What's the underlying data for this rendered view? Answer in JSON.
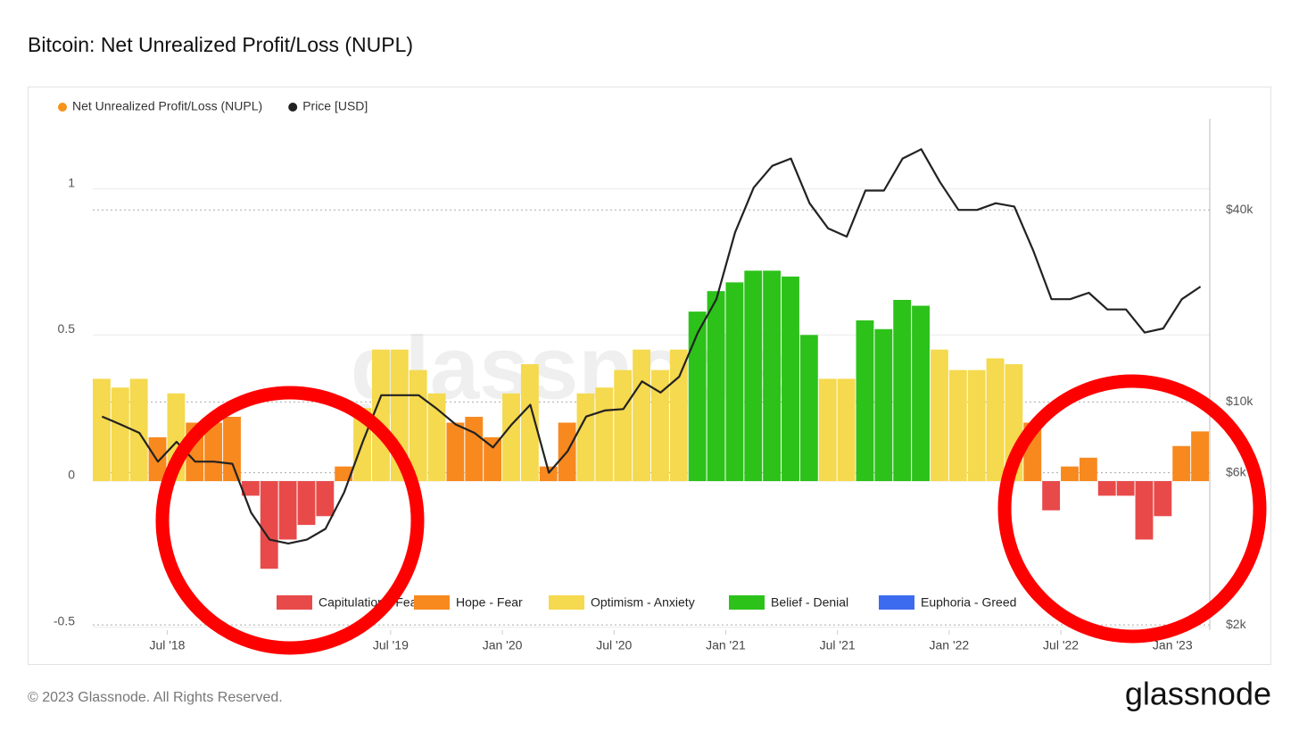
{
  "title": "Bitcoin: Net Unrealized Profit/Loss (NUPL)",
  "footer": {
    "copyright": "© 2023 Glassnode. All Rights Reserved.",
    "logo": "glassnode"
  },
  "chart_data": {
    "type": "combo",
    "watermark": "glassnode",
    "x": [
      "2018-03",
      "2018-04",
      "2018-05",
      "2018-06",
      "2018-07",
      "2018-08",
      "2018-09",
      "2018-10",
      "2018-11",
      "2018-12",
      "2019-01",
      "2019-02",
      "2019-03",
      "2019-04",
      "2019-05",
      "2019-06",
      "2019-07",
      "2019-08",
      "2019-09",
      "2019-10",
      "2019-11",
      "2019-12",
      "2020-01",
      "2020-02",
      "2020-03",
      "2020-04",
      "2020-05",
      "2020-06",
      "2020-07",
      "2020-08",
      "2020-09",
      "2020-10",
      "2020-11",
      "2020-12",
      "2021-01",
      "2021-02",
      "2021-03",
      "2021-04",
      "2021-05",
      "2021-06",
      "2021-07",
      "2021-08",
      "2021-09",
      "2021-10",
      "2021-11",
      "2021-12",
      "2022-01",
      "2022-02",
      "2022-03",
      "2022-04",
      "2022-05",
      "2022-06",
      "2022-07",
      "2022-08",
      "2022-09",
      "2022-10",
      "2022-11",
      "2022-12",
      "2023-01",
      "2023-02"
    ],
    "xlim": [
      "2018-03",
      "2023-03"
    ],
    "xticks": [
      {
        "value": "2018-07",
        "label": "Jul '18"
      },
      {
        "value": "2019-07",
        "label": "Jul '19"
      },
      {
        "value": "2020-01",
        "label": "Jan '20"
      },
      {
        "value": "2020-07",
        "label": "Jul '20"
      },
      {
        "value": "2021-01",
        "label": "Jan '21"
      },
      {
        "value": "2021-07",
        "label": "Jul '21"
      },
      {
        "value": "2022-01",
        "label": "Jan '22"
      },
      {
        "value": "2022-07",
        "label": "Jul '22"
      },
      {
        "value": "2023-01",
        "label": "Jan '23"
      }
    ],
    "ylim": [
      -0.51,
      1.24
    ],
    "yticks": [
      -0.5,
      0,
      0.5,
      1
    ],
    "y2lim": [
      1925,
      77300
    ],
    "y2scale": "log",
    "y2ticks": [
      {
        "value": 2000,
        "label": "$2k"
      },
      {
        "value": 6000,
        "label": "$6k"
      },
      {
        "value": 10000,
        "label": "$10k"
      },
      {
        "value": 40000,
        "label": "$40k"
      }
    ],
    "grid": true,
    "series": [
      {
        "name": "Net Unrealized Profit/Loss (NUPL)",
        "type": "bar",
        "color": "#f7931a",
        "values": [
          0.35,
          0.32,
          0.35,
          0.15,
          0.3,
          0.2,
          0.2,
          0.22,
          -0.05,
          -0.3,
          -0.2,
          -0.15,
          -0.12,
          0.05,
          0.25,
          0.45,
          0.45,
          0.38,
          0.3,
          0.2,
          0.22,
          0.15,
          0.3,
          0.4,
          0.05,
          0.2,
          0.3,
          0.32,
          0.38,
          0.45,
          0.38,
          0.45,
          0.58,
          0.65,
          0.68,
          0.72,
          0.72,
          0.7,
          0.5,
          0.35,
          0.35,
          0.55,
          0.52,
          0.62,
          0.6,
          0.45,
          0.38,
          0.38,
          0.42,
          0.4,
          0.2,
          -0.1,
          0.05,
          0.08,
          -0.05,
          -0.05,
          -0.2,
          -0.12,
          0.12,
          0.17
        ],
        "colors": [
          "#f5d94e",
          "#f5d94e",
          "#f5d94e",
          "#f7891f",
          "#f5d94e",
          "#f7891f",
          "#f7891f",
          "#f7891f",
          "#e84a4a",
          "#e84a4a",
          "#e84a4a",
          "#e84a4a",
          "#e84a4a",
          "#f7891f",
          "#f5d94e",
          "#f5d94e",
          "#f5d94e",
          "#f5d94e",
          "#f5d94e",
          "#f7891f",
          "#f7891f",
          "#f7891f",
          "#f5d94e",
          "#f5d94e",
          "#f7891f",
          "#f7891f",
          "#f5d94e",
          "#f5d94e",
          "#f5d94e",
          "#f5d94e",
          "#f5d94e",
          "#f5d94e",
          "#2cc21a",
          "#2cc21a",
          "#2cc21a",
          "#2cc21a",
          "#2cc21a",
          "#2cc21a",
          "#2cc21a",
          "#f5d94e",
          "#f5d94e",
          "#2cc21a",
          "#2cc21a",
          "#2cc21a",
          "#2cc21a",
          "#f5d94e",
          "#f5d94e",
          "#f5d94e",
          "#f5d94e",
          "#f5d94e",
          "#f7891f",
          "#e84a4a",
          "#f7891f",
          "#f7891f",
          "#e84a4a",
          "#e84a4a",
          "#e84a4a",
          "#e84a4a",
          "#f7891f",
          "#f7891f"
        ]
      },
      {
        "name": "Price [USD]",
        "type": "line",
        "axis": "y2",
        "color": "#222222",
        "values": [
          9000,
          8500,
          8000,
          6500,
          7500,
          6500,
          6500,
          6400,
          4500,
          3700,
          3600,
          3700,
          4000,
          5200,
          7500,
          10500,
          10500,
          10500,
          9500,
          8500,
          8000,
          7200,
          8500,
          9800,
          6000,
          7000,
          9000,
          9400,
          9500,
          11600,
          10700,
          12000,
          16500,
          21000,
          34000,
          47000,
          55000,
          58000,
          42000,
          35000,
          33000,
          46000,
          46000,
          58000,
          62000,
          49000,
          40000,
          40000,
          42000,
          41000,
          30000,
          21000,
          21000,
          22000,
          19500,
          19500,
          16500,
          17000,
          21000,
          23000
        ]
      }
    ],
    "zones": [
      {
        "name": "Capitulation - Fear",
        "color": "#e84a4a"
      },
      {
        "name": "Hope - Fear",
        "color": "#f7891f"
      },
      {
        "name": "Optimism - Anxiety",
        "color": "#f5d94e"
      },
      {
        "name": "Belief - Denial",
        "color": "#2cc21a"
      },
      {
        "name": "Euphoria - Greed",
        "color": "#3d6bf0"
      }
    ]
  }
}
